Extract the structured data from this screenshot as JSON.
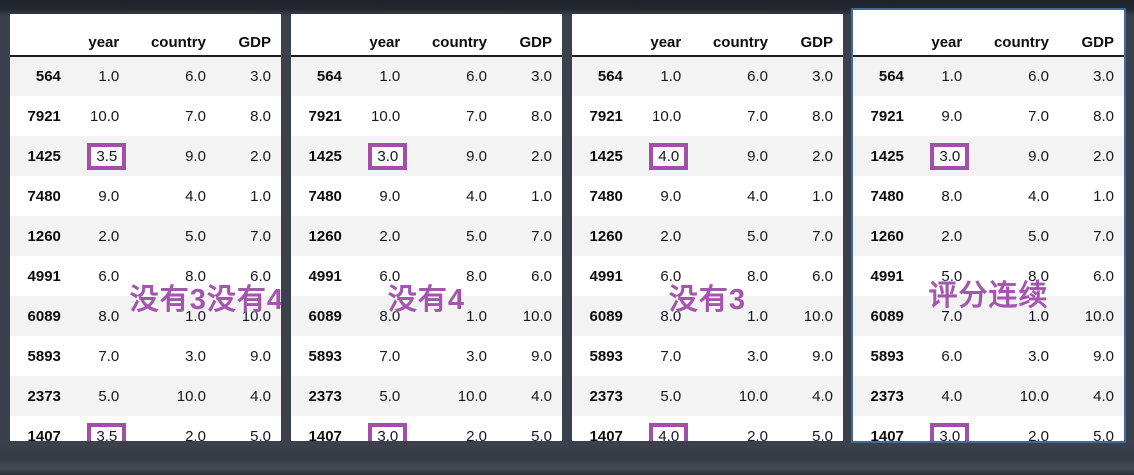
{
  "colors": {
    "page_background": "#3a414c",
    "panel_background": "#ffffff",
    "row_stripe": "#f3f3f4",
    "highlight_box": "#a24fa9",
    "annotation_text": "#a455ad",
    "selected_panel_border": "#3b6ba1",
    "header_rule": "#1c1c1c",
    "cell_text": "#16161e"
  },
  "columns": [
    "year",
    "country",
    "GDP"
  ],
  "index": [
    "564",
    "7921",
    "1425",
    "7480",
    "1260",
    "4991",
    "6089",
    "5893",
    "2373",
    "1407"
  ],
  "highlight_column": "year",
  "tables": [
    {
      "annotation": "没有3没有4",
      "selected": false,
      "highlight_rows": [
        2,
        9
      ],
      "rows": [
        [
          "1.0",
          "6.0",
          "3.0"
        ],
        [
          "10.0",
          "7.0",
          "8.0"
        ],
        [
          "3.5",
          "9.0",
          "2.0"
        ],
        [
          "9.0",
          "4.0",
          "1.0"
        ],
        [
          "2.0",
          "5.0",
          "7.0"
        ],
        [
          "6.0",
          "8.0",
          "6.0"
        ],
        [
          "8.0",
          "1.0",
          "10.0"
        ],
        [
          "7.0",
          "3.0",
          "9.0"
        ],
        [
          "5.0",
          "10.0",
          "4.0"
        ],
        [
          "3.5",
          "2.0",
          "5.0"
        ]
      ]
    },
    {
      "annotation": "没有4",
      "selected": false,
      "highlight_rows": [
        2,
        9
      ],
      "rows": [
        [
          "1.0",
          "6.0",
          "3.0"
        ],
        [
          "10.0",
          "7.0",
          "8.0"
        ],
        [
          "3.0",
          "9.0",
          "2.0"
        ],
        [
          "9.0",
          "4.0",
          "1.0"
        ],
        [
          "2.0",
          "5.0",
          "7.0"
        ],
        [
          "6.0",
          "8.0",
          "6.0"
        ],
        [
          "8.0",
          "1.0",
          "10.0"
        ],
        [
          "7.0",
          "3.0",
          "9.0"
        ],
        [
          "5.0",
          "10.0",
          "4.0"
        ],
        [
          "3.0",
          "2.0",
          "5.0"
        ]
      ]
    },
    {
      "annotation": "没有3",
      "selected": false,
      "highlight_rows": [
        2,
        9
      ],
      "rows": [
        [
          "1.0",
          "6.0",
          "3.0"
        ],
        [
          "10.0",
          "7.0",
          "8.0"
        ],
        [
          "4.0",
          "9.0",
          "2.0"
        ],
        [
          "9.0",
          "4.0",
          "1.0"
        ],
        [
          "2.0",
          "5.0",
          "7.0"
        ],
        [
          "6.0",
          "8.0",
          "6.0"
        ],
        [
          "8.0",
          "1.0",
          "10.0"
        ],
        [
          "7.0",
          "3.0",
          "9.0"
        ],
        [
          "5.0",
          "10.0",
          "4.0"
        ],
        [
          "4.0",
          "2.0",
          "5.0"
        ]
      ]
    },
    {
      "annotation": "评分连续",
      "selected": true,
      "highlight_rows": [
        2,
        9
      ],
      "rows": [
        [
          "1.0",
          "6.0",
          "3.0"
        ],
        [
          "9.0",
          "7.0",
          "8.0"
        ],
        [
          "3.0",
          "9.0",
          "2.0"
        ],
        [
          "8.0",
          "4.0",
          "1.0"
        ],
        [
          "2.0",
          "5.0",
          "7.0"
        ],
        [
          "5.0",
          "8.0",
          "6.0"
        ],
        [
          "7.0",
          "1.0",
          "10.0"
        ],
        [
          "6.0",
          "3.0",
          "9.0"
        ],
        [
          "4.0",
          "10.0",
          "4.0"
        ],
        [
          "3.0",
          "2.0",
          "5.0"
        ]
      ]
    }
  ]
}
